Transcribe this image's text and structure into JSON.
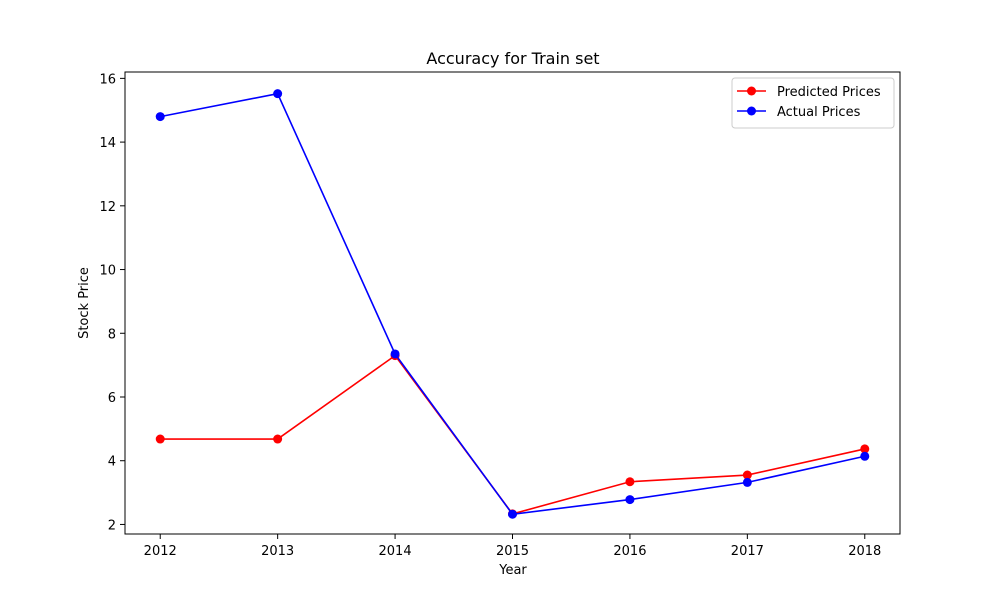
{
  "chart_data": {
    "type": "line",
    "title": "Accuracy for Train set",
    "xlabel": "Year",
    "ylabel": "Stock Price",
    "x": [
      2012,
      2013,
      2014,
      2015,
      2016,
      2017,
      2018
    ],
    "xticks": [
      "2012",
      "2013",
      "2014",
      "2015",
      "2016",
      "2017",
      "2018"
    ],
    "yticks": [
      "2",
      "4",
      "6",
      "8",
      "10",
      "12",
      "14",
      "16"
    ],
    "xlim": [
      2011.7,
      2018.3
    ],
    "ylim": [
      1.7,
      16.2
    ],
    "grid": false,
    "legend_position": "top-right",
    "series": [
      {
        "name": "Predicted Prices",
        "color": "#ff0000",
        "marker": "circle",
        "values": [
          4.68,
          4.68,
          7.3,
          2.33,
          3.34,
          3.55,
          4.37
        ]
      },
      {
        "name": "Actual Prices",
        "color": "#0000ff",
        "marker": "circle",
        "values": [
          14.8,
          15.52,
          7.35,
          2.32,
          2.78,
          3.32,
          4.14
        ]
      }
    ]
  }
}
